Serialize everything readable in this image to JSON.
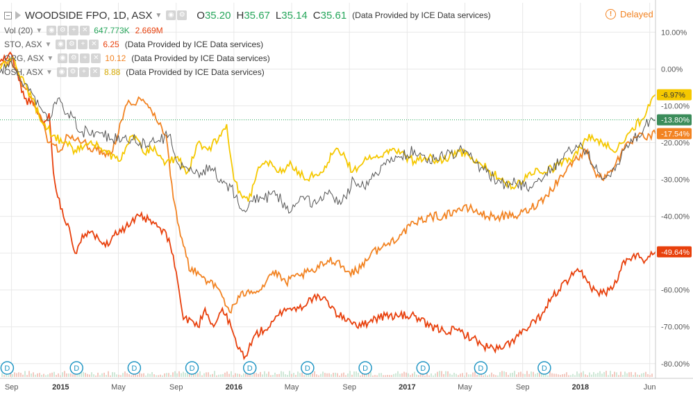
{
  "header": {
    "symbol": "WOODSIDE FPO, 1D, ASX",
    "o_label": "O",
    "o_value": "35.20",
    "h_label": "H",
    "h_value": "35.67",
    "l_label": "L",
    "l_value": "35.14",
    "c_label": "C",
    "c_value": "35.61",
    "provider": "(Data Provided by ICE Data services)",
    "delayed": "Delayed"
  },
  "legend": {
    "vol_label": "Vol (20)",
    "vol_value1": "647.773K",
    "vol_value2": "2.669M",
    "rows": [
      {
        "name": "STO, ASX",
        "value": "6.25",
        "note": "(Data Provided by ICE Data services)",
        "color": "#e8400c"
      },
      {
        "name": "ORG, ASX",
        "value": "10.12",
        "note": "(Data Provided by ICE Data services)",
        "color": "#f28322"
      },
      {
        "name": "OSH, ASX",
        "value": "8.88",
        "note": "(Data Provided by ICE Data services)",
        "color": "#f5c800"
      }
    ]
  },
  "colors": {
    "main": "#555555",
    "sto": "#e8400c",
    "org": "#f28322",
    "osh": "#f5c800",
    "grid": "#e8e8e8",
    "up": "#26a65b",
    "dividend": "#2196c4"
  },
  "chart_data": {
    "type": "line",
    "y_axis_unit": "percent change",
    "ylim": [
      -84,
      18
    ],
    "y_ticks": [
      "10.00%",
      "0.00%",
      "-10.00%",
      "-20.00%",
      "-30.00%",
      "-40.00%",
      "-50.00%",
      "-60.00%",
      "-70.00%",
      "-80.00%"
    ],
    "y_tick_values": [
      10,
      0,
      -10,
      -20,
      -30,
      -40,
      -50,
      -60,
      -70,
      -80
    ],
    "x_tick_labels": [
      "Sep",
      "2015",
      "May",
      "Sep",
      "2016",
      "May",
      "Sep",
      "2017",
      "May",
      "Sep",
      "2018",
      "Jun"
    ],
    "x_tick_bold": [
      false,
      true,
      false,
      false,
      true,
      false,
      false,
      true,
      false,
      false,
      true,
      false
    ],
    "x_tick_months": [
      0.6,
      4.0,
      8.0,
      12.0,
      16.0,
      20.0,
      24.0,
      28.0,
      32.0,
      36.0,
      40.0,
      44.8
    ],
    "x_range_months": [
      -0.2,
      45.2
    ],
    "grid": true,
    "dividend_markers": {
      "label": "D",
      "months": [
        0.3,
        5.1,
        9.1,
        13.1,
        17.1,
        21.1,
        25.1,
        29.1,
        33.1,
        37.5
      ]
    },
    "last_value_labels": [
      {
        "series": "OSH, ASX",
        "text": "-6.97%",
        "value": -6.97
      },
      {
        "series": "WOODSIDE FPO",
        "text": "-13.80%",
        "value": -13.8
      },
      {
        "series": "ORG, ASX",
        "text": "-17.54%",
        "value": -17.54
      },
      {
        "series": "STO, ASX",
        "text": "-49.64%",
        "value": -49.64
      }
    ],
    "series": [
      {
        "name": "WOODSIDE FPO",
        "x_months": [
          -0.2,
          0.6,
          1.5,
          2.5,
          3.2,
          3.8,
          4.5,
          5.5,
          6.5,
          7.5,
          8.5,
          9.5,
          10.5,
          11.5,
          12.2,
          12.8,
          13.5,
          14.5,
          15.2,
          15.8,
          16.5,
          17.3,
          18,
          19,
          19.6,
          20.5,
          21.5,
          22.5,
          23.5,
          24.3,
          25,
          25.8,
          26.5,
          27.5,
          28.5,
          29.3,
          30,
          31,
          32,
          32.6,
          33.5,
          34.5,
          35.5,
          36.5,
          37.2,
          38,
          38.6,
          39.3,
          40,
          40.5,
          41,
          41.5,
          42,
          42.5,
          43,
          43.5,
          44,
          44.4,
          44.8,
          45.2
        ],
        "y": [
          -1,
          2,
          -4,
          -10,
          -14,
          -8,
          -12,
          -17,
          -17,
          -19,
          -18,
          -20,
          -20,
          -18,
          -26,
          -27,
          -28,
          -27,
          -31,
          -32,
          -38,
          -36,
          -35,
          -34,
          -38,
          -36,
          -36,
          -34,
          -36,
          -30,
          -32,
          -28,
          -26,
          -24,
          -22,
          -25,
          -24,
          -23,
          -22,
          -25,
          -28,
          -31,
          -31,
          -32,
          -30,
          -27,
          -25,
          -22,
          -20,
          -23,
          -27,
          -30,
          -29,
          -26,
          -22,
          -19,
          -18,
          -16,
          -14,
          -13.8
        ]
      },
      {
        "name": "STO, ASX",
        "x_months": [
          -0.2,
          0.6,
          1.5,
          2.2,
          2.8,
          3.2,
          3.5,
          4,
          4.5,
          5,
          5.5,
          6.5,
          7.3,
          7.8,
          8.5,
          9.5,
          10.5,
          11.5,
          12,
          12.5,
          13,
          13.5,
          14,
          14.6,
          15.2,
          15.8,
          16.3,
          16.8,
          17.5,
          18.5,
          19.5,
          20.5,
          21.5,
          22.5,
          23.2,
          24,
          24.8,
          25.5,
          26.5,
          27.5,
          28.5,
          29.5,
          30.5,
          31.5,
          32.5,
          33.2,
          34,
          34.6,
          35.5,
          36.5,
          37.5,
          38,
          38.5,
          39.5,
          40,
          40.5,
          41,
          41.5,
          42,
          42.5,
          43,
          43.5,
          44,
          44.5,
          44.8,
          45.2
        ],
        "y": [
          2,
          4,
          -8,
          -10,
          -15,
          -12,
          -28,
          -38,
          -42,
          -50,
          -45,
          -45,
          -48,
          -44,
          -43,
          -40,
          -42,
          -46,
          -55,
          -68,
          -68,
          -70,
          -65,
          -70,
          -65,
          -70,
          -76,
          -78,
          -72,
          -70,
          -65,
          -65,
          -62,
          -63,
          -67,
          -68,
          -70,
          -68,
          -67,
          -67,
          -67,
          -70,
          -71,
          -71,
          -73,
          -75,
          -76,
          -76,
          -73,
          -70,
          -66,
          -62,
          -60,
          -56,
          -55,
          -58,
          -60,
          -61,
          -60,
          -58,
          -52,
          -52,
          -50,
          -52,
          -51,
          -49.64
        ]
      },
      {
        "name": "ORG, ASX",
        "x_months": [
          -0.2,
          0.6,
          1.5,
          2.5,
          3.2,
          4,
          4.5,
          5.5,
          6.5,
          7.5,
          8.5,
          9.5,
          10.5,
          11.3,
          11.8,
          12.5,
          13,
          13.5,
          14.3,
          15,
          15.7,
          16.4,
          17,
          17.8,
          18.7,
          19.6,
          20.5,
          21.5,
          22.5,
          23.2,
          23.8,
          24.5,
          25.5,
          26.5,
          27.5,
          28.5,
          29.5,
          30.5,
          31.5,
          32.5,
          33.5,
          34.5,
          35.5,
          36.5,
          37.5,
          38.5,
          39.5,
          40.5,
          41,
          41.5,
          42,
          42.5,
          43,
          43.5,
          44,
          44.5,
          45.2
        ],
        "y": [
          1,
          2,
          -5,
          -12,
          -20,
          -22,
          -18,
          -20,
          -22,
          -23,
          -10,
          -8,
          -12,
          -18,
          -35,
          -48,
          -55,
          -55,
          -58,
          -60,
          -66,
          -62,
          -60,
          -60,
          -55,
          -58,
          -56,
          -55,
          -52,
          -52,
          -55,
          -55,
          -50,
          -48,
          -45,
          -42,
          -40,
          -40,
          -38,
          -38,
          -40,
          -40,
          -40,
          -38,
          -35,
          -30,
          -25,
          -22,
          -28,
          -30,
          -28,
          -25,
          -22,
          -20,
          -18,
          -19,
          -17.54
        ]
      },
      {
        "name": "OSH, ASX",
        "x_months": [
          -0.2,
          0.6,
          1.3,
          2,
          2.8,
          3.5,
          4.2,
          5,
          6,
          7,
          8,
          9,
          9.8,
          10.5,
          11.2,
          12,
          12.8,
          13.5,
          14.2,
          15,
          15.5,
          16,
          16.6,
          17,
          17.6,
          18.2,
          19,
          20,
          21,
          22,
          23,
          23.7,
          24.2,
          25,
          25.8,
          26.6,
          27.5,
          28.5,
          29.5,
          30.5,
          31.5,
          32.5,
          33.5,
          34.5,
          35.5,
          36.5,
          37.5,
          38.5,
          39.5,
          40.2,
          40.8,
          41.5,
          42.2,
          43,
          43.6,
          44.2,
          44.8,
          45.2
        ],
        "y": [
          0,
          3,
          -2,
          -8,
          -15,
          -18,
          -20,
          -22,
          -20,
          -22,
          -25,
          -18,
          -23,
          -21,
          -26,
          -24,
          -28,
          -20,
          -22,
          -18,
          -15,
          -30,
          -35,
          -36,
          -28,
          -25,
          -28,
          -26,
          -30,
          -28,
          -22,
          -24,
          -28,
          -25,
          -24,
          -22,
          -23,
          -25,
          -24,
          -25,
          -22,
          -24,
          -27,
          -30,
          -32,
          -28,
          -28,
          -26,
          -24,
          -20,
          -18,
          -20,
          -22,
          -20,
          -16,
          -14,
          -10,
          -6.97
        ]
      }
    ]
  }
}
